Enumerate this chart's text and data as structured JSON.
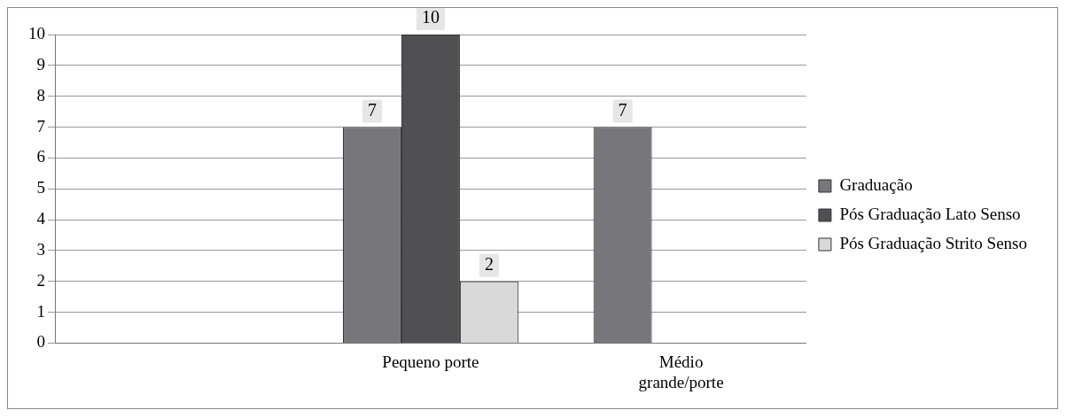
{
  "chart_data": {
    "type": "bar",
    "categories": [
      null,
      "Pequeno porte",
      "Médio grande/porte"
    ],
    "series": [
      {
        "name": "Graduação",
        "color": "#77777b",
        "values": [
          null,
          7,
          7
        ]
      },
      {
        "name": "Pós Graduação Lato Senso",
        "color": "#505053",
        "values": [
          null,
          10,
          null
        ]
      },
      {
        "name": "Pós Graduação Strito Senso",
        "color": "#d9d9d9",
        "values": [
          null,
          2,
          null
        ]
      }
    ],
    "ylim": [
      0,
      10
    ],
    "yticks": [
      0,
      1,
      2,
      3,
      4,
      5,
      6,
      7,
      8,
      9,
      10
    ],
    "grid": "y",
    "legend": "right",
    "data_labels": true
  }
}
